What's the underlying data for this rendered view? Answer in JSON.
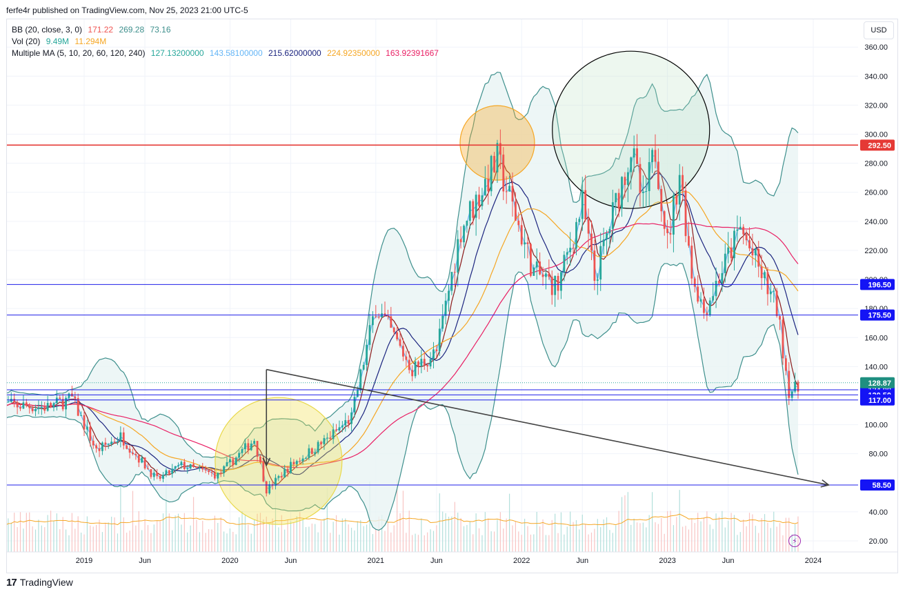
{
  "header": {
    "published_line": "ferfe4r published on TradingView.com, Nov 25, 2023 21:00 UTC-5"
  },
  "legend": {
    "bb": {
      "name": "BB (20, close, 3, 0)",
      "v1": "171.22",
      "v2": "269.28",
      "v3": "73.16"
    },
    "vol": {
      "name": "Vol (20)",
      "v1": "9.49M",
      "v2": "11.294M"
    },
    "ma": {
      "name": "Multiple MA (5, 10, 20, 60, 120, 240)",
      "v1": "127.13200000",
      "v2": "143.58100000",
      "v3": "215.62000000",
      "v4": "224.92350000",
      "v5": "163.92391667"
    }
  },
  "currency_button": "USD",
  "footer": {
    "brand": "TradingView",
    "logo_mark": "17"
  },
  "colors": {
    "up": "#26a69a",
    "down": "#ef5350",
    "bb": "#3d8f8c",
    "bb_fill": "#e8f4f4",
    "ma5": "#64b5f6",
    "ma10": "#8b1a1a",
    "ma20": "#1a237e",
    "ma60": "#f5a623",
    "ma120": "#e91e63",
    "resistance": "#e53935",
    "support": "#1e1ee8",
    "trend": "#424242",
    "circle_orange": "#f5a623",
    "circle_yellow": "#f0e050",
    "circle_green": "#b8e0c0"
  },
  "chart_data": {
    "type": "candlestick",
    "x_axis": {
      "start": "2018-06",
      "end": "2024-02",
      "labels": [
        {
          "date": "2019-01",
          "label": "2019"
        },
        {
          "date": "2019-06",
          "label": "Jun"
        },
        {
          "date": "2020-01",
          "label": "2020"
        },
        {
          "date": "2020-06",
          "label": "Jun"
        },
        {
          "date": "2021-01",
          "label": "2021"
        },
        {
          "date": "2021-06",
          "label": "Jun"
        },
        {
          "date": "2022-01",
          "label": "2022"
        },
        {
          "date": "2022-06",
          "label": "Jun"
        },
        {
          "date": "2023-01",
          "label": "2023"
        },
        {
          "date": "2023-06",
          "label": "Jun"
        },
        {
          "date": "2024-01",
          "label": "2024"
        }
      ]
    },
    "y_axis": {
      "min": 12,
      "max": 363,
      "ticks": [
        "20.00",
        "40.00",
        "80.00",
        "100.00",
        "140.00",
        "160.00",
        "180.00",
        "200.00",
        "220.00",
        "240.00",
        "260.00",
        "280.00",
        "300.00",
        "320.00",
        "340.00",
        "360.00"
      ]
    },
    "price_path": [
      {
        "date": "2018-06",
        "price": 114
      },
      {
        "date": "2018-10",
        "price": 112
      },
      {
        "date": "2018-12",
        "price": 118
      },
      {
        "date": "2019-02",
        "price": 82
      },
      {
        "date": "2019-04",
        "price": 92
      },
      {
        "date": "2019-07",
        "price": 62
      },
      {
        "date": "2019-09",
        "price": 72
      },
      {
        "date": "2019-12",
        "price": 65
      },
      {
        "date": "2020-03",
        "price": 90
      },
      {
        "date": "2020-04",
        "price": 55
      },
      {
        "date": "2020-06",
        "price": 72
      },
      {
        "date": "2020-09",
        "price": 90
      },
      {
        "date": "2020-11",
        "price": 105
      },
      {
        "date": "2021-01",
        "price": 182
      },
      {
        "date": "2021-04",
        "price": 138
      },
      {
        "date": "2021-06",
        "price": 150
      },
      {
        "date": "2021-08",
        "price": 235
      },
      {
        "date": "2021-11",
        "price": 282
      },
      {
        "date": "2022-02",
        "price": 205
      },
      {
        "date": "2022-04",
        "price": 195
      },
      {
        "date": "2022-06",
        "price": 252
      },
      {
        "date": "2022-07",
        "price": 200
      },
      {
        "date": "2022-10",
        "price": 290
      },
      {
        "date": "2022-11",
        "price": 250
      },
      {
        "date": "2022-12",
        "price": 290
      },
      {
        "date": "2023-01",
        "price": 225
      },
      {
        "date": "2023-02",
        "price": 275
      },
      {
        "date": "2023-03",
        "price": 205
      },
      {
        "date": "2023-04",
        "price": 178
      },
      {
        "date": "2023-07",
        "price": 235
      },
      {
        "date": "2023-10",
        "price": 180
      },
      {
        "date": "2023-11",
        "price": 124
      }
    ],
    "overlays": {
      "bollinger_bands": "BB (20, close, 3, 0)",
      "moving_averages": [
        "MA5",
        "MA10",
        "MA20",
        "MA60",
        "MA120"
      ],
      "volume": "Vol (20)"
    },
    "horizontal_levels": [
      {
        "value": 292.5,
        "label": "292.50",
        "color": "#e53935"
      },
      {
        "value": 196.5,
        "label": "196.50",
        "color": "#1e1ee8"
      },
      {
        "value": 175.5,
        "label": "175.50",
        "color": "#1e1ee8"
      },
      {
        "value": 124.0,
        "label": "124.00",
        "color": "#1e1ee8"
      },
      {
        "value": 120.5,
        "label": "120.50",
        "color": "#1e1ee8"
      },
      {
        "value": 117.0,
        "label": "117.00",
        "color": "#1e1ee8"
      },
      {
        "value": 58.5,
        "label": "58.50",
        "color": "#1e1ee8"
      }
    ],
    "last_price": {
      "value": 128.87,
      "label": "128.87",
      "color": "#26a69a"
    },
    "trend_line": {
      "from": {
        "date": "2020-04",
        "price": 138
      },
      "to": {
        "date": "2023-12",
        "price": 58.5
      }
    },
    "arrow_down": {
      "date": "2020-04",
      "from_price": 138,
      "to_price": 72
    },
    "circles": [
      {
        "type": "highlight",
        "center": {
          "date": "2020-05",
          "price": 75
        },
        "color": "#f0e050"
      },
      {
        "type": "highlight",
        "center": {
          "date": "2021-11",
          "price": 294
        },
        "color": "#f5a623"
      },
      {
        "type": "highlight",
        "center": {
          "date": "2022-10",
          "price": 303
        },
        "color": "#b8e0c0"
      }
    ]
  }
}
